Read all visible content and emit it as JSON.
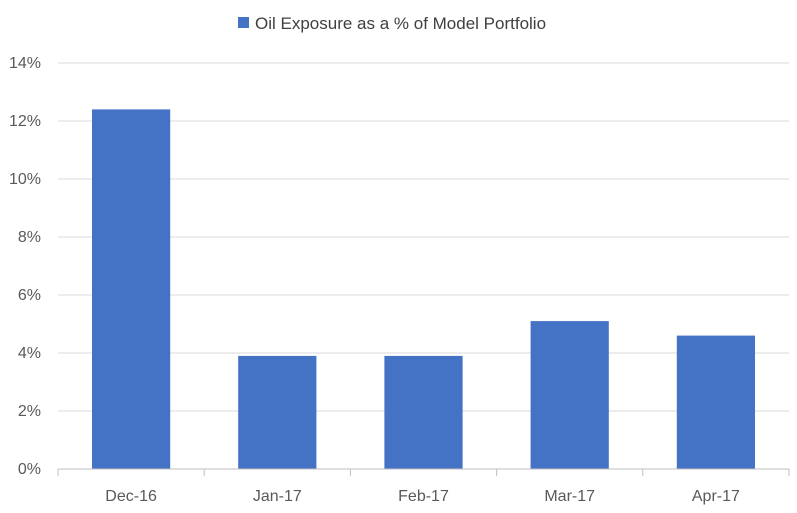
{
  "chart_data": {
    "type": "bar",
    "categories": [
      "Dec-16",
      "Jan-17",
      "Feb-17",
      "Mar-17",
      "Apr-17"
    ],
    "series": [
      {
        "name": "Oil Exposure as a % of Model Portfolio",
        "values": [
          12.4,
          3.9,
          3.9,
          5.1,
          4.6
        ]
      }
    ],
    "ylim": [
      0,
      14
    ],
    "yticks": [
      "0%",
      "2%",
      "4%",
      "6%",
      "8%",
      "10%",
      "12%",
      "14%"
    ],
    "ytick_values": [
      0,
      2,
      4,
      6,
      8,
      10,
      12,
      14
    ],
    "grid": true,
    "legend_position": "top",
    "colors": {
      "bar": "#4472C4",
      "grid": "#D9D9D9",
      "axis": "#BFBFBF"
    }
  }
}
